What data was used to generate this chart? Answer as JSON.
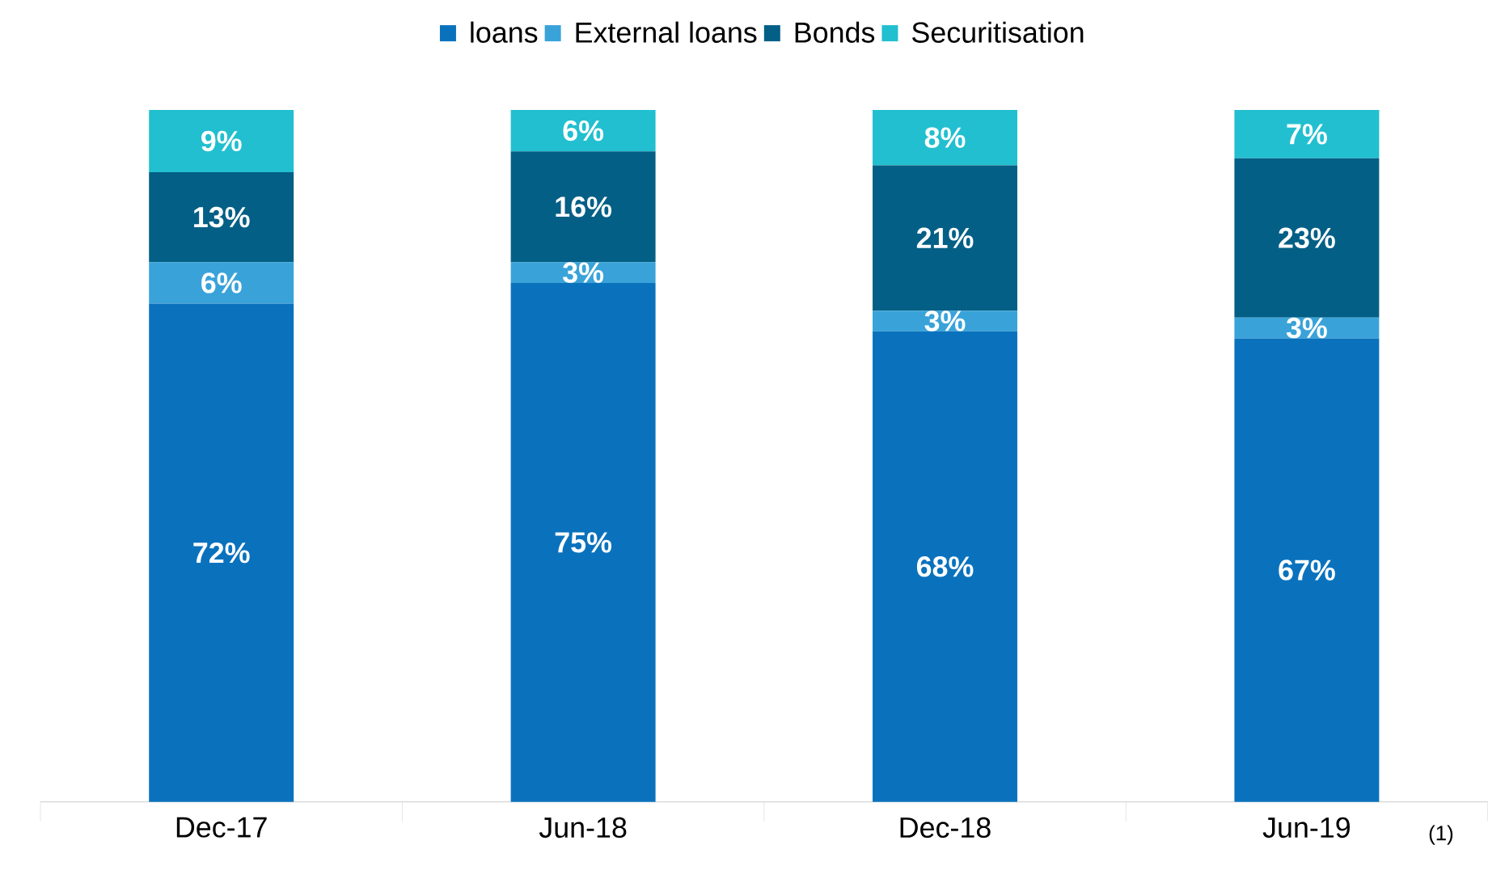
{
  "chart_data": {
    "type": "bar",
    "stacked": true,
    "categories": [
      "Dec-17",
      "Jun-18",
      "Dec-18",
      "Jun-19"
    ],
    "series": [
      {
        "name": "loans",
        "color": "#0a72bd",
        "values": [
          72,
          75,
          68,
          67
        ],
        "value_labels": [
          "72%",
          "75%",
          "68%",
          "67%"
        ]
      },
      {
        "name": "External loans",
        "color": "#39a3d9",
        "values": [
          6,
          3,
          3,
          3
        ],
        "value_labels": [
          "6%",
          "3%",
          "3%",
          "3%"
        ]
      },
      {
        "name": "Bonds",
        "color": "#035f85",
        "values": [
          13,
          16,
          21,
          23
        ],
        "value_labels": [
          "13%",
          "16%",
          "21%",
          "23%"
        ]
      },
      {
        "name": "Securitisation",
        "color": "#21bfd0",
        "values": [
          9,
          6,
          8,
          7
        ],
        "value_labels": [
          "9%",
          "6%",
          "8%",
          "7%"
        ]
      }
    ],
    "ylim": [
      0,
      100
    ],
    "tick_labels": "x",
    "legend": "top",
    "annotations": [
      "(1)"
    ]
  }
}
